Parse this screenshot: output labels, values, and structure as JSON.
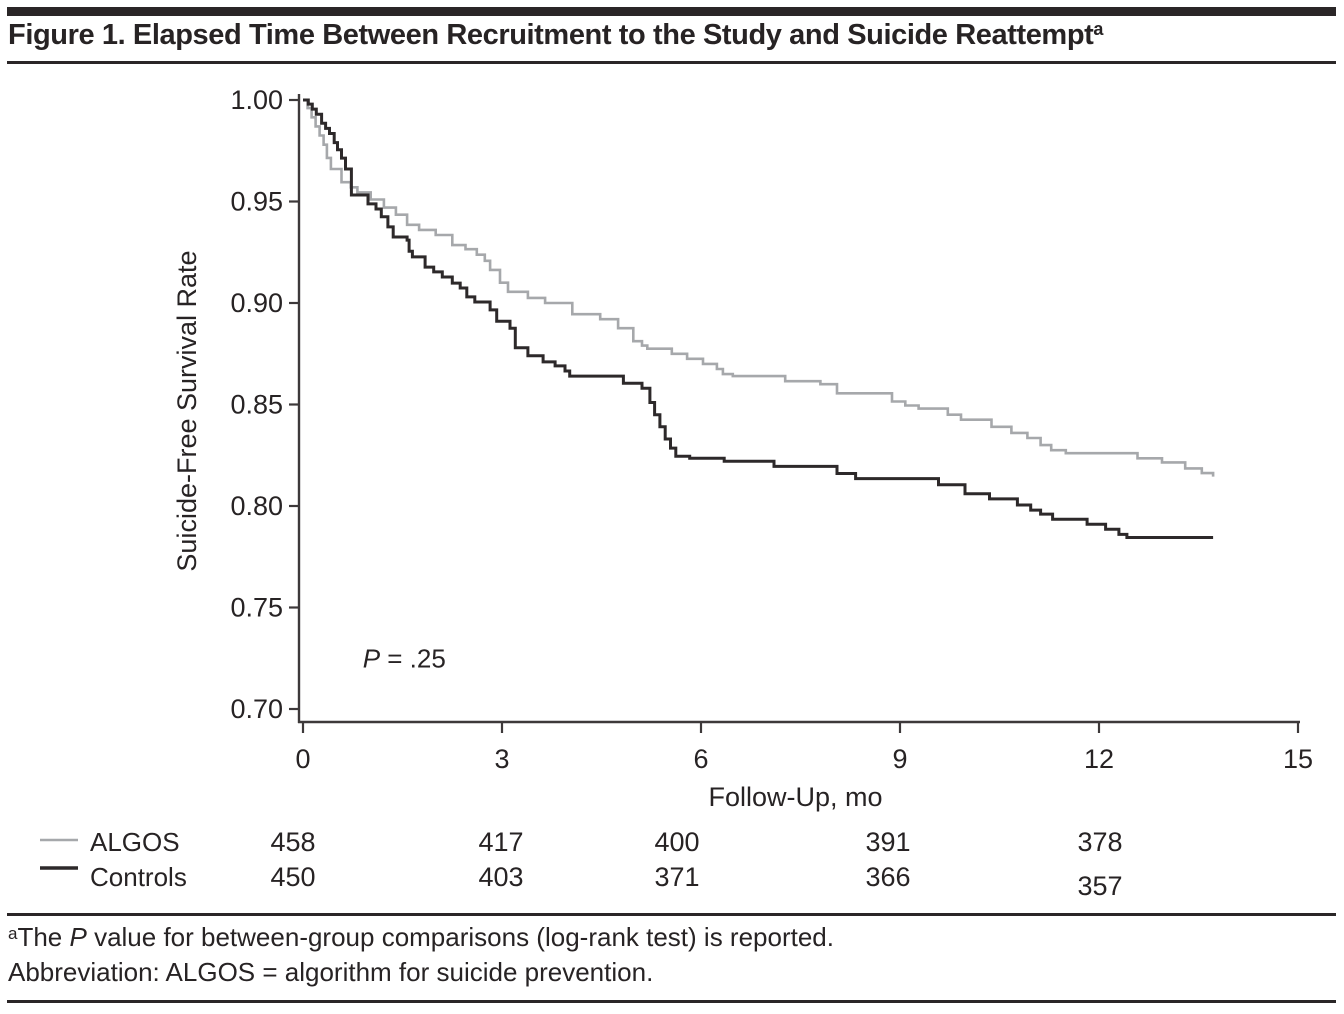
{
  "title": {
    "main": "Figure 1. Elapsed Time Between Recruitment to the Study and Suicide Reattempt",
    "sup": "a"
  },
  "colors": {
    "algos": "#a6a8ab",
    "controls": "#2d292a",
    "axis": "#3d393a",
    "text": "#272324"
  },
  "chart_data": {
    "type": "line",
    "subtype": "kaplan-meier-step",
    "xlabel": "Follow-Up, mo",
    "ylabel": "Suicide-Free Survival Rate",
    "xlim": [
      0,
      15
    ],
    "ylim": [
      0.7,
      1.0
    ],
    "xticks": [
      0,
      3,
      6,
      9,
      12,
      15
    ],
    "xtick_labels": [
      "0",
      "3",
      "6",
      "9",
      "12",
      "15"
    ],
    "yticks": [
      1.0,
      0.95,
      0.9,
      0.85,
      0.8,
      0.75,
      0.7
    ],
    "ytick_labels": [
      "1.00",
      "0.95",
      "0.90",
      "0.85",
      "0.80",
      "0.75",
      "0.70"
    ],
    "grid": false,
    "legend_position": "bottom-left",
    "annotation": {
      "italic": "P",
      "text": " = .25",
      "x": 0.9,
      "y": 0.7205
    },
    "series": [
      {
        "name": "ALGOS",
        "color_key": "algos",
        "stroke_width": 2.6,
        "steps": [
          [
            0,
            1.0
          ],
          [
            0.07,
            0.996
          ],
          [
            0.13,
            0.9915
          ],
          [
            0.19,
            0.987
          ],
          [
            0.25,
            0.9825
          ],
          [
            0.31,
            0.978
          ],
          [
            0.36,
            0.9715
          ],
          [
            0.42,
            0.966
          ],
          [
            0.58,
            0.9595
          ],
          [
            0.72,
            0.957
          ],
          [
            0.82,
            0.9545
          ],
          [
            1.02,
            0.951
          ],
          [
            1.22,
            0.947
          ],
          [
            1.4,
            0.9435
          ],
          [
            1.57,
            0.9385
          ],
          [
            1.75,
            0.936
          ],
          [
            2.0,
            0.9335
          ],
          [
            2.25,
            0.9285
          ],
          [
            2.45,
            0.9265
          ],
          [
            2.62,
            0.9238
          ],
          [
            2.74,
            0.9208
          ],
          [
            2.82,
            0.9163
          ],
          [
            2.97,
            0.91
          ],
          [
            3.09,
            0.9055
          ],
          [
            3.39,
            0.9025
          ],
          [
            3.65,
            0.9
          ],
          [
            4.06,
            0.8945
          ],
          [
            4.48,
            0.892
          ],
          [
            4.75,
            0.8876
          ],
          [
            4.98,
            0.8812
          ],
          [
            5.11,
            0.879
          ],
          [
            5.19,
            0.8775
          ],
          [
            5.56,
            0.875
          ],
          [
            5.79,
            0.8725
          ],
          [
            6.03,
            0.87
          ],
          [
            6.24,
            0.8675
          ],
          [
            6.33,
            0.865
          ],
          [
            6.48,
            0.864
          ],
          [
            7.27,
            0.8615
          ],
          [
            7.8,
            0.86
          ],
          [
            8.05,
            0.8555
          ],
          [
            8.88,
            0.8515
          ],
          [
            9.08,
            0.8495
          ],
          [
            9.28,
            0.848
          ],
          [
            9.72,
            0.845
          ],
          [
            9.92,
            0.8425
          ],
          [
            10.38,
            0.839
          ],
          [
            10.68,
            0.836
          ],
          [
            10.92,
            0.8335
          ],
          [
            11.12,
            0.83
          ],
          [
            11.28,
            0.8275
          ],
          [
            11.5,
            0.826
          ],
          [
            12.58,
            0.8235
          ],
          [
            12.95,
            0.8215
          ],
          [
            13.3,
            0.8185
          ],
          [
            13.55,
            0.8162
          ],
          [
            13.72,
            0.8145
          ]
        ]
      },
      {
        "name": "Controls",
        "color_key": "controls",
        "stroke_width": 3.0,
        "steps": [
          [
            0,
            1.0
          ],
          [
            0.08,
            0.998
          ],
          [
            0.14,
            0.9955
          ],
          [
            0.2,
            0.993
          ],
          [
            0.28,
            0.9885
          ],
          [
            0.34,
            0.986
          ],
          [
            0.4,
            0.9835
          ],
          [
            0.47,
            0.979
          ],
          [
            0.52,
            0.9755
          ],
          [
            0.58,
            0.9714
          ],
          [
            0.64,
            0.966
          ],
          [
            0.73,
            0.9532
          ],
          [
            0.98,
            0.9488
          ],
          [
            1.1,
            0.9463
          ],
          [
            1.18,
            0.9425
          ],
          [
            1.28,
            0.9375
          ],
          [
            1.36,
            0.9325
          ],
          [
            1.57,
            0.931
          ],
          [
            1.6,
            0.9255
          ],
          [
            1.65,
            0.9227
          ],
          [
            1.84,
            0.9177
          ],
          [
            1.97,
            0.9153
          ],
          [
            2.1,
            0.9128
          ],
          [
            2.25,
            0.9098
          ],
          [
            2.37,
            0.9074
          ],
          [
            2.47,
            0.903
          ],
          [
            2.59,
            0.9005
          ],
          [
            2.82,
            0.8966
          ],
          [
            2.92,
            0.891
          ],
          [
            3.12,
            0.8876
          ],
          [
            3.2,
            0.878
          ],
          [
            3.39,
            0.874
          ],
          [
            3.62,
            0.871
          ],
          [
            3.8,
            0.869
          ],
          [
            3.95,
            0.8665
          ],
          [
            4.02,
            0.864
          ],
          [
            4.83,
            0.8605
          ],
          [
            5.11,
            0.858
          ],
          [
            5.23,
            0.851
          ],
          [
            5.3,
            0.845
          ],
          [
            5.38,
            0.839
          ],
          [
            5.46,
            0.833
          ],
          [
            5.54,
            0.8285
          ],
          [
            5.62,
            0.8245
          ],
          [
            5.83,
            0.8235
          ],
          [
            6.35,
            0.822
          ],
          [
            7.1,
            0.8195
          ],
          [
            8.05,
            0.816
          ],
          [
            8.33,
            0.8135
          ],
          [
            9.58,
            0.8105
          ],
          [
            9.98,
            0.806
          ],
          [
            10.35,
            0.8035
          ],
          [
            10.77,
            0.8005
          ],
          [
            10.97,
            0.798
          ],
          [
            11.12,
            0.796
          ],
          [
            11.3,
            0.7935
          ],
          [
            11.82,
            0.791
          ],
          [
            12.1,
            0.7885
          ],
          [
            12.3,
            0.786
          ],
          [
            12.42,
            0.7845
          ],
          [
            13.72,
            0.7845
          ]
        ]
      }
    ]
  },
  "risk_table": {
    "value_months": [
      0,
      3,
      6,
      9,
      12
    ],
    "rows": [
      {
        "label": "ALGOS",
        "swatch": "algos",
        "values": [
          "458",
          "417",
          "400",
          "391",
          "378"
        ]
      },
      {
        "label": "Controls",
        "swatch": "controls",
        "values": [
          "450",
          "403",
          "371",
          "366",
          "357"
        ]
      }
    ]
  },
  "footnotes": {
    "line1": {
      "sup": "a",
      "pre": "The ",
      "italic": "P",
      "post": " value for between-group comparisons (log-rank test) is reported."
    },
    "line2": "Abbreviation: ALGOS = algorithm for suicide prevention."
  }
}
